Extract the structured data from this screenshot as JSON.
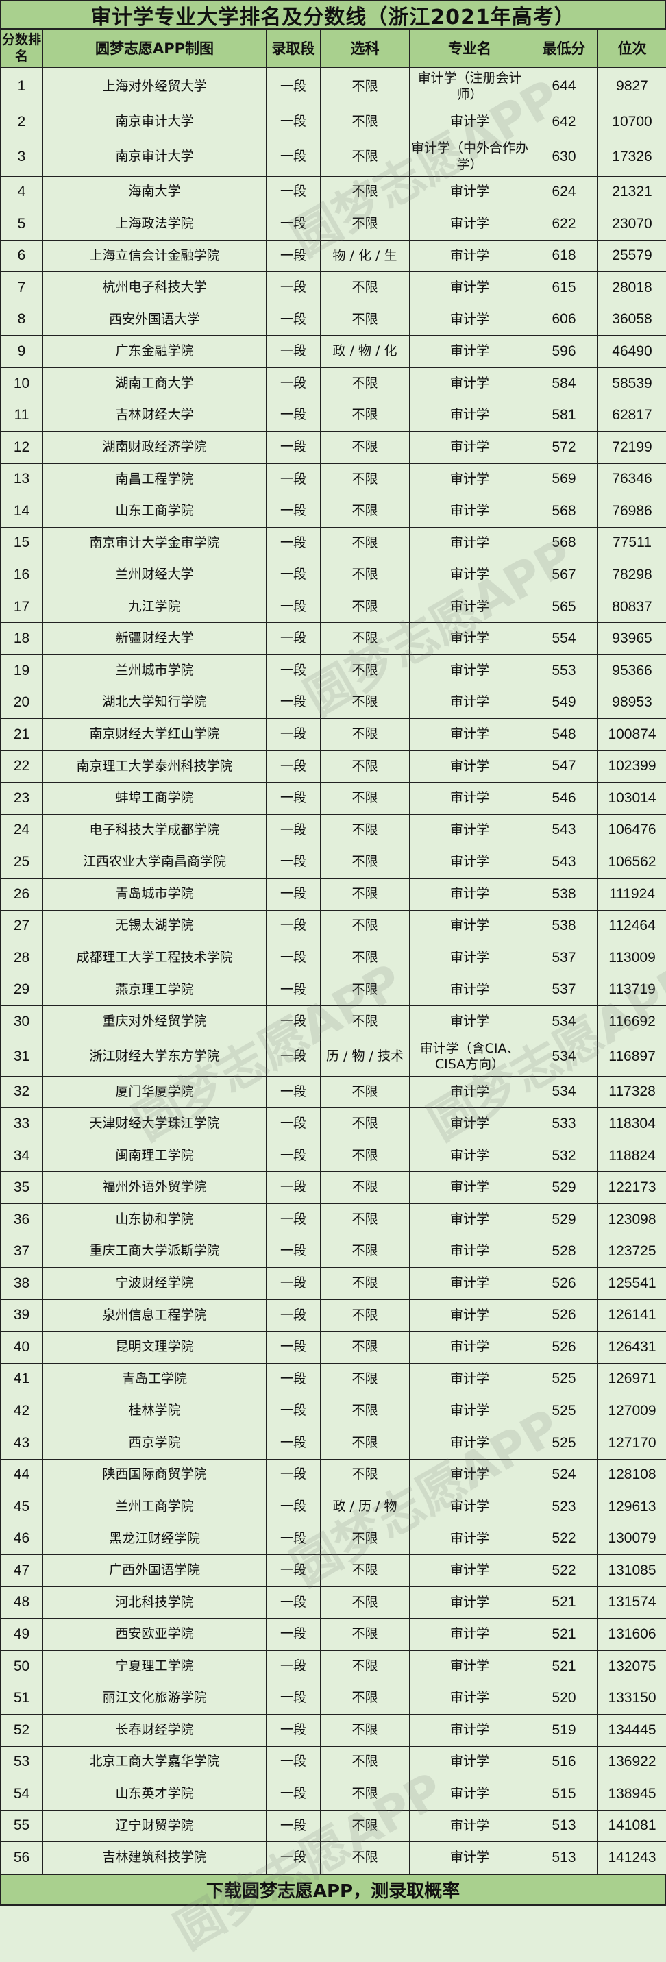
{
  "title": "审计学专业大学排名及分数线（浙江2021年高考）",
  "headers": [
    "分数排名",
    "圆梦志愿APP制图",
    "录取段",
    "选科",
    "专业名",
    "最低分",
    "位次"
  ],
  "footer": "下载圆梦志愿APP，测录取概率",
  "watermark": "圆梦志愿APP",
  "colors": {
    "header_bg": "#a9d08e",
    "row_bg": "#e2efda"
  },
  "rows": [
    [
      "1",
      "上海对外经贸大学",
      "一段",
      "不限",
      "审计学（注册会计师）",
      "644",
      "9827"
    ],
    [
      "2",
      "南京审计大学",
      "一段",
      "不限",
      "审计学",
      "642",
      "10700"
    ],
    [
      "3",
      "南京审计大学",
      "一段",
      "不限",
      "审计学（中外合作办学）",
      "630",
      "17326"
    ],
    [
      "4",
      "海南大学",
      "一段",
      "不限",
      "审计学",
      "624",
      "21321"
    ],
    [
      "5",
      "上海政法学院",
      "一段",
      "不限",
      "审计学",
      "622",
      "23070"
    ],
    [
      "6",
      "上海立信会计金融学院",
      "一段",
      "物 / 化 / 生",
      "审计学",
      "618",
      "25579"
    ],
    [
      "7",
      "杭州电子科技大学",
      "一段",
      "不限",
      "审计学",
      "615",
      "28018"
    ],
    [
      "8",
      "西安外国语大学",
      "一段",
      "不限",
      "审计学",
      "606",
      "36058"
    ],
    [
      "9",
      "广东金融学院",
      "一段",
      "政 / 物 / 化",
      "审计学",
      "596",
      "46490"
    ],
    [
      "10",
      "湖南工商大学",
      "一段",
      "不限",
      "审计学",
      "584",
      "58539"
    ],
    [
      "11",
      "吉林财经大学",
      "一段",
      "不限",
      "审计学",
      "581",
      "62817"
    ],
    [
      "12",
      "湖南财政经济学院",
      "一段",
      "不限",
      "审计学",
      "572",
      "72199"
    ],
    [
      "13",
      "南昌工程学院",
      "一段",
      "不限",
      "审计学",
      "569",
      "76346"
    ],
    [
      "14",
      "山东工商学院",
      "一段",
      "不限",
      "审计学",
      "568",
      "76986"
    ],
    [
      "15",
      "南京审计大学金审学院",
      "一段",
      "不限",
      "审计学",
      "568",
      "77511"
    ],
    [
      "16",
      "兰州财经大学",
      "一段",
      "不限",
      "审计学",
      "567",
      "78298"
    ],
    [
      "17",
      "九江学院",
      "一段",
      "不限",
      "审计学",
      "565",
      "80837"
    ],
    [
      "18",
      "新疆财经大学",
      "一段",
      "不限",
      "审计学",
      "554",
      "93965"
    ],
    [
      "19",
      "兰州城市学院",
      "一段",
      "不限",
      "审计学",
      "553",
      "95366"
    ],
    [
      "20",
      "湖北大学知行学院",
      "一段",
      "不限",
      "审计学",
      "549",
      "98953"
    ],
    [
      "21",
      "南京财经大学红山学院",
      "一段",
      "不限",
      "审计学",
      "548",
      "100874"
    ],
    [
      "22",
      "南京理工大学泰州科技学院",
      "一段",
      "不限",
      "审计学",
      "547",
      "102399"
    ],
    [
      "23",
      "蚌埠工商学院",
      "一段",
      "不限",
      "审计学",
      "546",
      "103014"
    ],
    [
      "24",
      "电子科技大学成都学院",
      "一段",
      "不限",
      "审计学",
      "543",
      "106476"
    ],
    [
      "25",
      "江西农业大学南昌商学院",
      "一段",
      "不限",
      "审计学",
      "543",
      "106562"
    ],
    [
      "26",
      "青岛城市学院",
      "一段",
      "不限",
      "审计学",
      "538",
      "111924"
    ],
    [
      "27",
      "无锡太湖学院",
      "一段",
      "不限",
      "审计学",
      "538",
      "112464"
    ],
    [
      "28",
      "成都理工大学工程技术学院",
      "一段",
      "不限",
      "审计学",
      "537",
      "113009"
    ],
    [
      "29",
      "燕京理工学院",
      "一段",
      "不限",
      "审计学",
      "537",
      "113719"
    ],
    [
      "30",
      "重庆对外经贸学院",
      "一段",
      "不限",
      "审计学",
      "534",
      "116692"
    ],
    [
      "31",
      "浙江财经大学东方学院",
      "一段",
      "历 / 物 / 技术",
      "审计学（含CIA、CISA方向）",
      "534",
      "116897"
    ],
    [
      "32",
      "厦门华厦学院",
      "一段",
      "不限",
      "审计学",
      "534",
      "117328"
    ],
    [
      "33",
      "天津财经大学珠江学院",
      "一段",
      "不限",
      "审计学",
      "533",
      "118304"
    ],
    [
      "34",
      "闽南理工学院",
      "一段",
      "不限",
      "审计学",
      "532",
      "118824"
    ],
    [
      "35",
      "福州外语外贸学院",
      "一段",
      "不限",
      "审计学",
      "529",
      "122173"
    ],
    [
      "36",
      "山东协和学院",
      "一段",
      "不限",
      "审计学",
      "529",
      "123098"
    ],
    [
      "37",
      "重庆工商大学派斯学院",
      "一段",
      "不限",
      "审计学",
      "528",
      "123725"
    ],
    [
      "38",
      "宁波财经学院",
      "一段",
      "不限",
      "审计学",
      "526",
      "125541"
    ],
    [
      "39",
      "泉州信息工程学院",
      "一段",
      "不限",
      "审计学",
      "526",
      "126141"
    ],
    [
      "40",
      "昆明文理学院",
      "一段",
      "不限",
      "审计学",
      "526",
      "126431"
    ],
    [
      "41",
      "青岛工学院",
      "一段",
      "不限",
      "审计学",
      "525",
      "126971"
    ],
    [
      "42",
      "桂林学院",
      "一段",
      "不限",
      "审计学",
      "525",
      "127009"
    ],
    [
      "43",
      "西京学院",
      "一段",
      "不限",
      "审计学",
      "525",
      "127170"
    ],
    [
      "44",
      "陕西国际商贸学院",
      "一段",
      "不限",
      "审计学",
      "524",
      "128108"
    ],
    [
      "45",
      "兰州工商学院",
      "一段",
      "政 / 历 / 物",
      "审计学",
      "523",
      "129613"
    ],
    [
      "46",
      "黑龙江财经学院",
      "一段",
      "不限",
      "审计学",
      "522",
      "130079"
    ],
    [
      "47",
      "广西外国语学院",
      "一段",
      "不限",
      "审计学",
      "522",
      "131085"
    ],
    [
      "48",
      "河北科技学院",
      "一段",
      "不限",
      "审计学",
      "521",
      "131574"
    ],
    [
      "49",
      "西安欧亚学院",
      "一段",
      "不限",
      "审计学",
      "521",
      "131606"
    ],
    [
      "50",
      "宁夏理工学院",
      "一段",
      "不限",
      "审计学",
      "521",
      "132075"
    ],
    [
      "51",
      "丽江文化旅游学院",
      "一段",
      "不限",
      "审计学",
      "520",
      "133150"
    ],
    [
      "52",
      "长春财经学院",
      "一段",
      "不限",
      "审计学",
      "519",
      "134445"
    ],
    [
      "53",
      "北京工商大学嘉华学院",
      "一段",
      "不限",
      "审计学",
      "516",
      "136922"
    ],
    [
      "54",
      "山东英才学院",
      "一段",
      "不限",
      "审计学",
      "515",
      "138945"
    ],
    [
      "55",
      "辽宁财贸学院",
      "一段",
      "不限",
      "审计学",
      "513",
      "141081"
    ],
    [
      "56",
      "吉林建筑科技学院",
      "一段",
      "不限",
      "审计学",
      "513",
      "141243"
    ]
  ]
}
